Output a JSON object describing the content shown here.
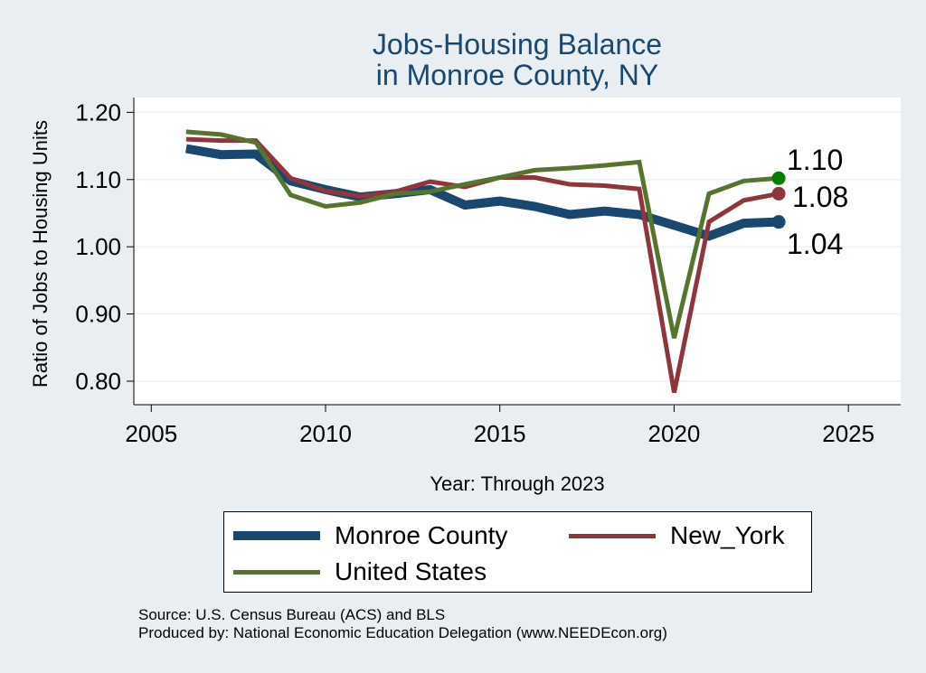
{
  "title_line1": "Jobs-Housing Balance",
  "title_line2": "in Monroe County, NY",
  "source": "Source: U.S. Census Bureau (ACS) and BLS",
  "produced_by": "Produced by: National Economic Education Delegation (www.NEEDEcon.org)",
  "chart_data": {
    "type": "line",
    "xlabel": "Year: Through 2023",
    "ylabel": "Ratio of Jobs to Housing Units",
    "xlim": [
      2004.5,
      2026.5
    ],
    "ylim": [
      0.765,
      1.222
    ],
    "xticks": [
      2005,
      2010,
      2015,
      2020,
      2025
    ],
    "yticks": [
      0.8,
      0.9,
      1.0,
      1.1,
      1.2
    ],
    "ytick_labels": [
      "0.80",
      "0.90",
      "1.00",
      "1.10",
      "1.20"
    ],
    "grid": true,
    "legend_position": "bottom",
    "series": [
      {
        "name": "Monroe County",
        "color": "#1a476f",
        "x": [
          2006,
          2007,
          2008,
          2009,
          2010,
          2011,
          2012,
          2013,
          2014,
          2015,
          2016,
          2017,
          2018,
          2019,
          2020,
          2021,
          2022,
          2023
        ],
        "values": [
          1.146,
          1.137,
          1.138,
          1.098,
          1.085,
          1.074,
          1.079,
          1.085,
          1.062,
          1.068,
          1.06,
          1.048,
          1.053,
          1.048,
          1.032,
          1.016,
          1.035,
          1.037
        ],
        "end_label": "1.04"
      },
      {
        "name": "New_York",
        "color": "#90353b",
        "x": [
          2006,
          2007,
          2008,
          2009,
          2010,
          2011,
          2012,
          2013,
          2014,
          2015,
          2016,
          2017,
          2018,
          2019,
          2020,
          2021,
          2022,
          2023
        ],
        "values": [
          1.16,
          1.158,
          1.158,
          1.102,
          1.083,
          1.075,
          1.082,
          1.097,
          1.089,
          1.103,
          1.103,
          1.093,
          1.091,
          1.086,
          0.783,
          1.037,
          1.069,
          1.079
        ],
        "end_label": "1.08"
      },
      {
        "name": "United States",
        "color": "#55752f",
        "x": [
          2006,
          2007,
          2008,
          2009,
          2010,
          2011,
          2012,
          2013,
          2014,
          2015,
          2016,
          2017,
          2018,
          2019,
          2020,
          2021,
          2022,
          2023
        ],
        "values": [
          1.171,
          1.167,
          1.155,
          1.077,
          1.06,
          1.066,
          1.079,
          1.082,
          1.093,
          1.103,
          1.114,
          1.117,
          1.121,
          1.126,
          0.864,
          1.079,
          1.098,
          1.102
        ],
        "end_label": "1.10",
        "marker_color": "#008000"
      }
    ]
  }
}
